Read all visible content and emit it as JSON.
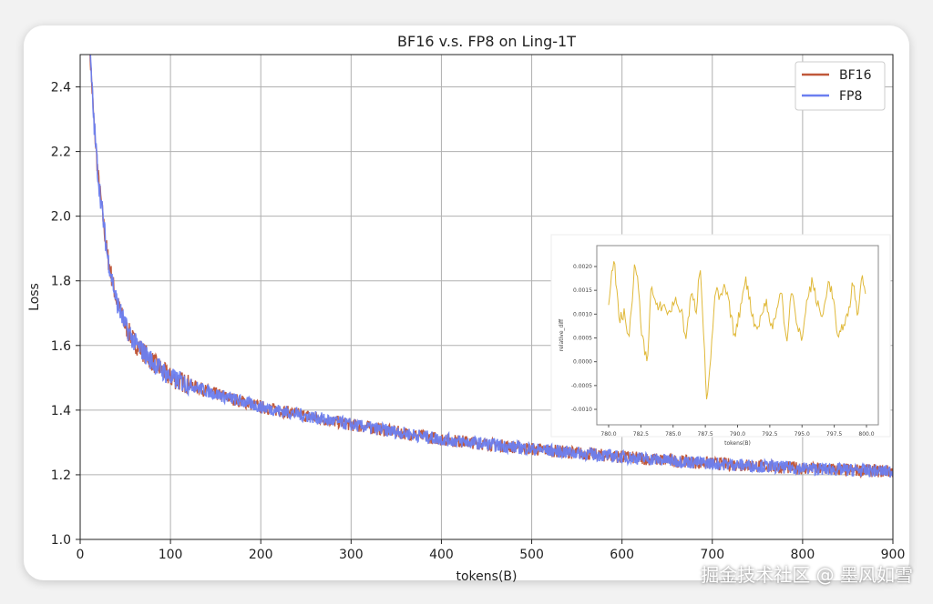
{
  "chart_data": [
    {
      "type": "line",
      "title": "BF16 v.s. FP8 on Ling-1T",
      "xlabel": "tokens(B)",
      "ylabel": "Loss",
      "xlim": [
        0,
        900
      ],
      "ylim": [
        1.0,
        2.5
      ],
      "xticks": [
        "0",
        "100",
        "200",
        "300",
        "400",
        "500",
        "600",
        "700",
        "800",
        "900"
      ],
      "yticks": [
        "1.0",
        "1.2",
        "1.4",
        "1.6",
        "1.8",
        "2.0",
        "2.2",
        "2.4"
      ],
      "grid": true,
      "legend": "top-right",
      "x": [
        10,
        15,
        20,
        25,
        30,
        40,
        50,
        60,
        80,
        100,
        150,
        200,
        300,
        400,
        500,
        600,
        700,
        800,
        900
      ],
      "series": [
        {
          "name": "BF16",
          "color": "#c0583a",
          "values": [
            2.55,
            2.3,
            2.12,
            2.0,
            1.88,
            1.74,
            1.66,
            1.61,
            1.55,
            1.5,
            1.45,
            1.41,
            1.355,
            1.31,
            1.28,
            1.255,
            1.235,
            1.22,
            1.21
          ]
        },
        {
          "name": "FP8",
          "color": "#6b7ff0",
          "values": [
            2.55,
            2.3,
            2.12,
            2.0,
            1.88,
            1.74,
            1.66,
            1.61,
            1.55,
            1.5,
            1.45,
            1.41,
            1.355,
            1.31,
            1.28,
            1.255,
            1.235,
            1.22,
            1.21
          ]
        }
      ]
    },
    {
      "type": "line",
      "title": "",
      "xlabel": "tokens(B)",
      "ylabel": "relative_diff",
      "xlim": [
        780,
        800
      ],
      "ylim": [
        -0.001,
        0.0022
      ],
      "xticks": [
        "780.0",
        "782.5",
        "785.0",
        "787.5",
        "790.0",
        "792.5",
        "795.0",
        "797.5",
        "800.0"
      ],
      "yticks": [
        "0.0020",
        "0.0015",
        "0.0010",
        "0.0005",
        "0.0000",
        "-0.0005",
        "-0.0010"
      ],
      "grid": false,
      "series": [
        {
          "name": "relative_diff",
          "color": "#e0b93a",
          "x": [
            780.0,
            780.4,
            780.8,
            781.2,
            781.6,
            782.0,
            782.3,
            782.6,
            783.0,
            783.3,
            783.7,
            784.2,
            784.7,
            785.1,
            785.6,
            786.0,
            786.4,
            786.8,
            787.1,
            787.4,
            787.6,
            788.0,
            788.3,
            788.7,
            789.0,
            789.4,
            789.8,
            790.2,
            790.6,
            791.0,
            791.4,
            791.8,
            792.2,
            792.6,
            793.0,
            793.4,
            793.8,
            794.2,
            794.6,
            795.0,
            795.4,
            795.8,
            796.2,
            796.6,
            797.0,
            797.4,
            797.8,
            798.2,
            798.6,
            799.0,
            799.3,
            799.6,
            800.0
          ],
          "values": [
            0.0013,
            0.0022,
            0.0009,
            0.001,
            0.0005,
            0.002,
            0.0016,
            0.0005,
            0.0,
            0.0016,
            0.0011,
            0.0012,
            0.001,
            0.0013,
            0.0011,
            0.0005,
            0.0014,
            0.0011,
            0.0021,
            0.0005,
            -0.0009,
            0.0004,
            0.0015,
            0.0013,
            0.0016,
            0.0011,
            0.0005,
            0.0011,
            0.0018,
            0.0012,
            0.0007,
            0.0009,
            0.0013,
            0.0007,
            0.001,
            0.0015,
            0.0004,
            0.0016,
            0.0007,
            0.0005,
            0.0013,
            0.0017,
            0.0012,
            0.0009,
            0.0017,
            0.0014,
            0.0004,
            0.0008,
            0.001,
            0.0018,
            0.0008,
            0.0018,
            0.0014
          ]
        }
      ]
    }
  ],
  "watermark": "掘金技术社区 @ 墨风如雪"
}
